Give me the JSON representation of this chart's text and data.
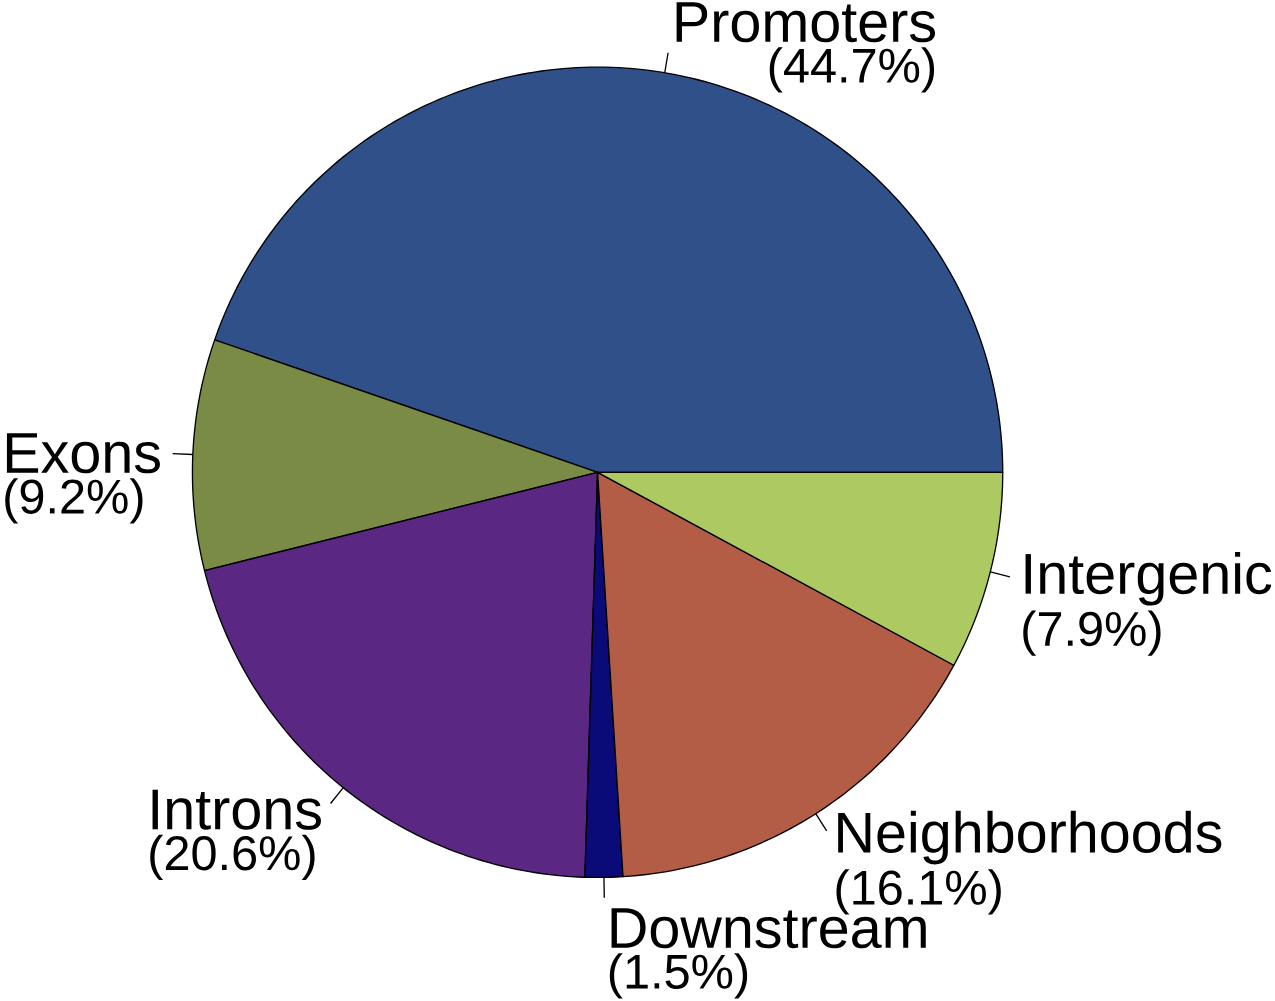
{
  "chart_data": {
    "type": "pie",
    "categories": [
      "Promoters",
      "Exons",
      "Introns",
      "Downstream",
      "Neighborhoods",
      "Intergenic"
    ],
    "values": [
      44.7,
      9.2,
      20.6,
      1.5,
      16.1,
      7.9
    ],
    "value_labels": [
      "(44.7%)",
      "(9.2%)",
      "(20.6%)",
      "(1.5%)",
      "(16.1%)",
      "(7.9%)"
    ],
    "colors": [
      "#30508a",
      "#7a8b45",
      "#5a2783",
      "#0a0a78",
      "#b35d47",
      "#adc962"
    ]
  }
}
